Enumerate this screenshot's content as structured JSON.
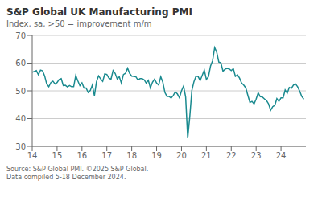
{
  "chart_data": {
    "type": "line",
    "title": "S&P Global UK Manufacturing PMI",
    "subtitle": "Index, sa, >50 = improvement m/m",
    "source": "Source: S&P Global PMI. ©2025 S&P Global.\nData compiled 5-18 December 2024.",
    "color": "#1a8a8f",
    "grid": "y",
    "xlim": [
      2014,
      2025
    ],
    "xticks": [
      {
        "value": 2014,
        "label": "14"
      },
      {
        "value": 2015,
        "label": "15"
      },
      {
        "value": 2016,
        "label": "16"
      },
      {
        "value": 2017,
        "label": "17"
      },
      {
        "value": 2018,
        "label": "18"
      },
      {
        "value": 2019,
        "label": "19"
      },
      {
        "value": 2020,
        "label": "20"
      },
      {
        "value": 2021,
        "label": "21"
      },
      {
        "value": 2022,
        "label": "22"
      },
      {
        "value": 2023,
        "label": "23"
      },
      {
        "value": 2024,
        "label": "24"
      }
    ],
    "ylim": [
      30,
      70
    ],
    "yticks": [
      30,
      40,
      50,
      60,
      70
    ],
    "x": [
      2014,
      2014.0833333333333,
      2014.1666666666667,
      2014.25,
      2014.3333333333333,
      2014.4166666666667,
      2014.5,
      2014.5833333333333,
      2014.6666666666667,
      2014.75,
      2014.8333333333333,
      2014.9166666666667,
      2015,
      2015.0833333333333,
      2015.1666666666667,
      2015.25,
      2015.3333333333333,
      2015.4166666666667,
      2015.5,
      2015.5833333333333,
      2015.6666666666667,
      2015.75,
      2015.8333333333333,
      2015.9166666666667,
      2016,
      2016.0833333333333,
      2016.1666666666667,
      2016.25,
      2016.3333333333333,
      2016.4166666666667,
      2016.5,
      2016.5833333333333,
      2016.6666666666667,
      2016.75,
      2016.8333333333333,
      2016.9166666666667,
      2017,
      2017.0833333333333,
      2017.1666666666667,
      2017.25,
      2017.3333333333333,
      2017.4166666666667,
      2017.5,
      2017.5833333333333,
      2017.6666666666667,
      2017.75,
      2017.8333333333333,
      2017.9166666666667,
      2018,
      2018.0833333333333,
      2018.1666666666667,
      2018.25,
      2018.3333333333333,
      2018.4166666666667,
      2018.5,
      2018.5833333333333,
      2018.6666666666667,
      2018.75,
      2018.8333333333333,
      2018.9166666666667,
      2019,
      2019.0833333333333,
      2019.1666666666667,
      2019.25,
      2019.3333333333333,
      2019.4166666666667,
      2019.5,
      2019.5833333333333,
      2019.6666666666667,
      2019.75,
      2019.8333333333333,
      2019.9166666666667,
      2020,
      2020.0833333333333,
      2020.1666666666667,
      2020.25,
      2020.3333333333333,
      2020.4166666666667,
      2020.5,
      2020.5833333333333,
      2020.6666666666667,
      2020.75,
      2020.8333333333333,
      2020.9166666666667,
      2021,
      2021.0833333333333,
      2021.1666666666667,
      2021.25,
      2021.3333333333333,
      2021.4166666666667,
      2021.5,
      2021.5833333333333,
      2021.6666666666667,
      2021.75,
      2021.8333333333333,
      2021.9166666666667,
      2022,
      2022.0833333333333,
      2022.1666666666667,
      2022.25,
      2022.3333333333333,
      2022.4166666666667,
      2022.5,
      2022.5833333333333,
      2022.6666666666667,
      2022.75,
      2022.8333333333333,
      2022.9166666666667,
      2023,
      2023.0833333333333,
      2023.1666666666667,
      2023.25,
      2023.3333333333333,
      2023.4166666666667,
      2023.5,
      2023.5833333333333,
      2023.6666666666667,
      2023.75,
      2023.8333333333333,
      2023.9166666666667,
      2024,
      2024.0833333333333,
      2024.1666666666667,
      2024.25,
      2024.3333333333333,
      2024.4166666666667,
      2024.5,
      2024.5833333333333,
      2024.6666666666667,
      2024.75,
      2024.8333333333333,
      2024.9166666666667
    ],
    "values": [
      56.7,
      57.0,
      57.3,
      55.8,
      57.5,
      57.2,
      55.4,
      52.5,
      51.5,
      53.0,
      53.5,
      52.5,
      53.0,
      54.1,
      54.4,
      51.9,
      52.0,
      51.4,
      51.9,
      51.5,
      51.5,
      55.5,
      53.6,
      51.9,
      52.9,
      51.0,
      51.0,
      49.4,
      50.1,
      52.1,
      48.2,
      53.3,
      55.4,
      54.3,
      53.4,
      56.1,
      55.9,
      54.6,
      54.2,
      57.3,
      56.3,
      54.3,
      55.1,
      52.8,
      55.9,
      56.3,
      58.2,
      56.3,
      55.3,
      55.2,
      55.1,
      53.9,
      54.4,
      54.4,
      54.0,
      52.8,
      53.8,
      51.1,
      53.1,
      54.2,
      52.8,
      52.1,
      55.1,
      53.1,
      49.4,
      48.0,
      48.0,
      47.4,
      48.3,
      49.6,
      48.9,
      47.5,
      50.0,
      51.7,
      47.8,
      32.9,
      40.7,
      50.1,
      53.3,
      55.3,
      55.2,
      53.7,
      55.6,
      57.5,
      54.1,
      55.1,
      58.9,
      60.9,
      65.6,
      63.9,
      60.4,
      60.1,
      57.1,
      57.8,
      58.1,
      57.9,
      57.3,
      58.0,
      55.2,
      55.8,
      54.6,
      52.8,
      52.1,
      51.1,
      48.4,
      45.8,
      46.2,
      45.3,
      47.0,
      49.3,
      47.9,
      47.8,
      47.1,
      46.5,
      45.3,
      43.0,
      44.3,
      44.8,
      47.2,
      46.2,
      47.5,
      47.5,
      50.3,
      49.1,
      51.2,
      50.9,
      52.1,
      52.5,
      51.5,
      49.9,
      48.0,
      47.0
    ]
  }
}
